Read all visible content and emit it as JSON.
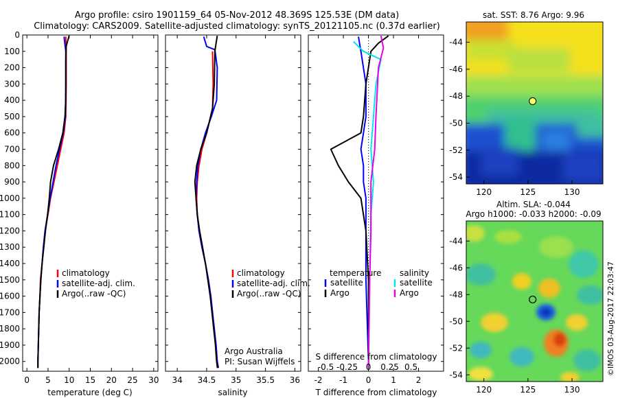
{
  "header": {
    "line1": "Argo profile: csiro 1901159_64 05-Nov-2012 48.369S 125.53E (DM data)",
    "line2": "Climatology: CARS2009. Satellite-adjusted climatology: synTS_20121105.nc (0.37d earlier)"
  },
  "colors": {
    "climatology": "#ff0000",
    "satellite": "#0000ff",
    "argo": "#000000",
    "sat_salinity": "#00e5ee",
    "argo_salinity": "#e600e6"
  },
  "chart_data": [
    {
      "type": "line",
      "name": "temperature-profile",
      "xlabel": "temperature (deg C)",
      "ylabel": "",
      "xlim": [
        -1,
        31
      ],
      "ylim": [
        2060,
        0
      ],
      "xticks": [
        0,
        5,
        10,
        15,
        20,
        25,
        30
      ],
      "yticks": [
        0,
        100,
        200,
        300,
        400,
        500,
        600,
        700,
        800,
        900,
        1000,
        1100,
        1200,
        1300,
        1400,
        1500,
        1600,
        1700,
        1800,
        1900,
        2000
      ],
      "legend": {
        "placement": "lower-right",
        "entries": [
          "climatology",
          "satellite-adj. clim.",
          "Argo(..raw -QC)"
        ]
      },
      "series": [
        {
          "name": "climatology",
          "color": "#ff0000",
          "points": [
            [
              9.2,
              10
            ],
            [
              9.3,
              100
            ],
            [
              9.3,
              300
            ],
            [
              9.2,
              500
            ],
            [
              8.8,
              600
            ],
            [
              8.0,
              700
            ],
            [
              7.2,
              800
            ],
            [
              6.4,
              900
            ],
            [
              5.6,
              1000
            ],
            [
              5.0,
              1100
            ],
            [
              4.3,
              1200
            ],
            [
              3.9,
              1300
            ],
            [
              3.6,
              1400
            ],
            [
              3.2,
              1500
            ],
            [
              3.1,
              1600
            ],
            [
              2.9,
              1700
            ],
            [
              2.8,
              1800
            ],
            [
              2.7,
              1900
            ],
            [
              2.6,
              2000
            ],
            [
              2.6,
              2040
            ]
          ]
        },
        {
          "name": "satellite-adj. clim.",
          "color": "#0000ff",
          "points": [
            [
              8.8,
              10
            ],
            [
              9.0,
              60
            ],
            [
              9.2,
              100
            ],
            [
              9.2,
              300
            ],
            [
              9.1,
              500
            ],
            [
              8.6,
              600
            ],
            [
              7.7,
              700
            ],
            [
              6.9,
              800
            ],
            [
              6.2,
              900
            ],
            [
              5.5,
              1000
            ],
            [
              4.9,
              1100
            ],
            [
              4.3,
              1200
            ],
            [
              3.9,
              1300
            ],
            [
              3.6,
              1400
            ],
            [
              3.3,
              1500
            ],
            [
              3.1,
              1600
            ],
            [
              2.9,
              1700
            ],
            [
              2.8,
              1800
            ],
            [
              2.7,
              1900
            ],
            [
              2.6,
              2000
            ],
            [
              2.6,
              2040
            ]
          ]
        },
        {
          "name": "Argo(..raw -QC)",
          "color": "#000000",
          "points": [
            [
              10.0,
              5
            ],
            [
              9.6,
              40
            ],
            [
              9.3,
              70
            ],
            [
              9.2,
              150
            ],
            [
              9.2,
              400
            ],
            [
              9.0,
              500
            ],
            [
              8.5,
              600
            ],
            [
              7.5,
              700
            ],
            [
              6.3,
              800
            ],
            [
              5.6,
              900
            ],
            [
              5.3,
              1000
            ],
            [
              4.9,
              1100
            ],
            [
              4.4,
              1200
            ],
            [
              4.0,
              1300
            ],
            [
              3.6,
              1400
            ],
            [
              3.3,
              1500
            ],
            [
              3.1,
              1600
            ],
            [
              2.9,
              1700
            ],
            [
              2.8,
              1800
            ],
            [
              2.7,
              1900
            ],
            [
              2.6,
              2000
            ],
            [
              2.6,
              2040
            ]
          ]
        }
      ]
    },
    {
      "type": "line",
      "name": "salinity-profile",
      "xlabel": "salinity",
      "xlim": [
        33.8,
        36.1
      ],
      "ylim": [
        2060,
        0
      ],
      "xticks": [
        34,
        34.5,
        35,
        35.5,
        36
      ],
      "legend": {
        "placement": "lower-right",
        "entries": [
          "climatology",
          "satellite-adj. clim.",
          "Argo(..raw -QC)"
        ]
      },
      "annotation": [
        "Argo Australia",
        "PI: Susan Wijffels"
      ],
      "series": [
        {
          "name": "climatology",
          "color": "#ff0000",
          "points": [
            [
              34.6,
              100
            ],
            [
              34.61,
              300
            ],
            [
              34.6,
              450
            ],
            [
              34.5,
              600
            ],
            [
              34.42,
              700
            ],
            [
              34.37,
              800
            ],
            [
              34.34,
              900
            ],
            [
              34.33,
              1000
            ],
            [
              34.34,
              1100
            ],
            [
              34.37,
              1200
            ],
            [
              34.42,
              1300
            ],
            [
              34.48,
              1400
            ],
            [
              34.53,
              1500
            ],
            [
              34.57,
              1600
            ],
            [
              34.6,
              1700
            ],
            [
              34.63,
              1800
            ],
            [
              34.65,
              1900
            ],
            [
              34.67,
              2000
            ],
            [
              34.68,
              2040
            ]
          ]
        },
        {
          "name": "satellite-adj. clim.",
          "color": "#0000ff",
          "points": [
            [
              34.45,
              10
            ],
            [
              34.5,
              70
            ],
            [
              34.64,
              90
            ],
            [
              34.68,
              200
            ],
            [
              34.67,
              400
            ],
            [
              34.58,
              500
            ],
            [
              34.48,
              600
            ],
            [
              34.4,
              700
            ],
            [
              34.35,
              800
            ],
            [
              34.33,
              900
            ],
            [
              34.32,
              1000
            ],
            [
              34.34,
              1100
            ],
            [
              34.37,
              1200
            ],
            [
              34.42,
              1300
            ],
            [
              34.48,
              1400
            ],
            [
              34.53,
              1500
            ],
            [
              34.57,
              1600
            ],
            [
              34.6,
              1700
            ],
            [
              34.63,
              1800
            ],
            [
              34.66,
              1900
            ],
            [
              34.68,
              2000
            ],
            [
              34.7,
              2040
            ]
          ]
        },
        {
          "name": "Argo(..raw -QC)",
          "color": "#000000",
          "points": [
            [
              34.68,
              5
            ],
            [
              34.66,
              50
            ],
            [
              34.64,
              100
            ],
            [
              34.63,
              300
            ],
            [
              34.6,
              450
            ],
            [
              34.5,
              600
            ],
            [
              34.4,
              700
            ],
            [
              34.33,
              800
            ],
            [
              34.3,
              900
            ],
            [
              34.32,
              1000
            ],
            [
              34.34,
              1100
            ],
            [
              34.38,
              1200
            ],
            [
              34.43,
              1300
            ],
            [
              34.48,
              1400
            ],
            [
              34.52,
              1500
            ],
            [
              34.56,
              1600
            ],
            [
              34.59,
              1700
            ],
            [
              34.62,
              1800
            ],
            [
              34.65,
              1900
            ],
            [
              34.67,
              2000
            ],
            [
              34.69,
              2040
            ]
          ]
        }
      ]
    },
    {
      "type": "line",
      "name": "difference-profile",
      "xlabel": "T difference from climatology",
      "x2label": "S difference from climatology",
      "xlim": [
        -2.4,
        3.0
      ],
      "ylim": [
        2060,
        0
      ],
      "xticks": [
        "-2",
        "-1",
        "0",
        "1",
        "2"
      ],
      "x2ticks": [
        "-0.5",
        "-0.25",
        "0",
        "0.25",
        "0.5"
      ],
      "legend": {
        "placement": "lower",
        "temperature_title": "temperature",
        "salinity_title": "salinity",
        "entries": [
          "satellite",
          "Argo",
          "satellite",
          "Argo"
        ]
      },
      "series": [
        {
          "name": "temperature satellite",
          "color": "#0000ff",
          "points": [
            [
              -0.4,
              10
            ],
            [
              -0.3,
              100
            ],
            [
              -0.1,
              300
            ],
            [
              -0.1,
              500
            ],
            [
              -0.2,
              600
            ],
            [
              -0.3,
              700
            ],
            [
              -0.2,
              800
            ],
            [
              -0.2,
              900
            ],
            [
              -0.1,
              1000
            ],
            [
              -0.1,
              1500
            ],
            [
              0,
              2000
            ],
            [
              0,
              2040
            ]
          ]
        },
        {
          "name": "temperature Argo",
          "color": "#000000",
          "points": [
            [
              0.8,
              5
            ],
            [
              0.4,
              50
            ],
            [
              0.1,
              100
            ],
            [
              -0.1,
              300
            ],
            [
              -0.2,
              500
            ],
            [
              -0.3,
              600
            ],
            [
              -1.5,
              700
            ],
            [
              -1.2,
              800
            ],
            [
              -0.8,
              900
            ],
            [
              -0.3,
              1000
            ],
            [
              -0.1,
              1200
            ],
            [
              0,
              1500
            ],
            [
              0,
              2040
            ]
          ]
        },
        {
          "name": "salinity satellite",
          "color": "#00e5ee",
          "points": [
            [
              -0.6,
              40
            ],
            [
              -0.2,
              100
            ],
            [
              0.5,
              150
            ],
            [
              0.3,
              300
            ],
            [
              0.2,
              500
            ],
            [
              0.1,
              700
            ],
            [
              0.2,
              900
            ],
            [
              0.1,
              1100
            ],
            [
              0.05,
              1500
            ],
            [
              0,
              2040
            ]
          ]
        },
        {
          "name": "salinity Argo",
          "color": "#e600e6",
          "points": [
            [
              0.5,
              5
            ],
            [
              0.6,
              80
            ],
            [
              0.4,
              200
            ],
            [
              0.3,
              500
            ],
            [
              0.25,
              700
            ],
            [
              0.1,
              900
            ],
            [
              0.1,
              1200
            ],
            [
              0.05,
              1500
            ],
            [
              0,
              2040
            ]
          ]
        }
      ]
    },
    {
      "type": "heatmap",
      "name": "sst-map",
      "title": "sat. SST: 8.76 Argo: 9.96",
      "xlim": [
        118,
        133.5
      ],
      "ylim": [
        -54.5,
        -42.5
      ],
      "xticks": [
        120,
        125,
        130
      ],
      "yticks": [
        -44,
        -46,
        -48,
        -50,
        -52,
        -54
      ],
      "marker": {
        "lon": 125.53,
        "lat": -48.369,
        "color": "#ffff66"
      }
    },
    {
      "type": "heatmap",
      "name": "sla-map",
      "title": "Altim. SLA: -0.044",
      "subtitle": "Argo h1000: -0.033 h2000: -0.09",
      "xlim": [
        118,
        133.5
      ],
      "ylim": [
        -54.5,
        -42.5
      ],
      "xticks": [
        120,
        125,
        130
      ],
      "yticks": [
        -44,
        -46,
        -48,
        -50,
        -52,
        -54
      ],
      "marker": {
        "lon": 125.53,
        "lat": -48.369,
        "color": "#000000"
      }
    }
  ],
  "footer": {
    "stamp": "©IMOS 03-Aug-2017 22:03:47"
  }
}
